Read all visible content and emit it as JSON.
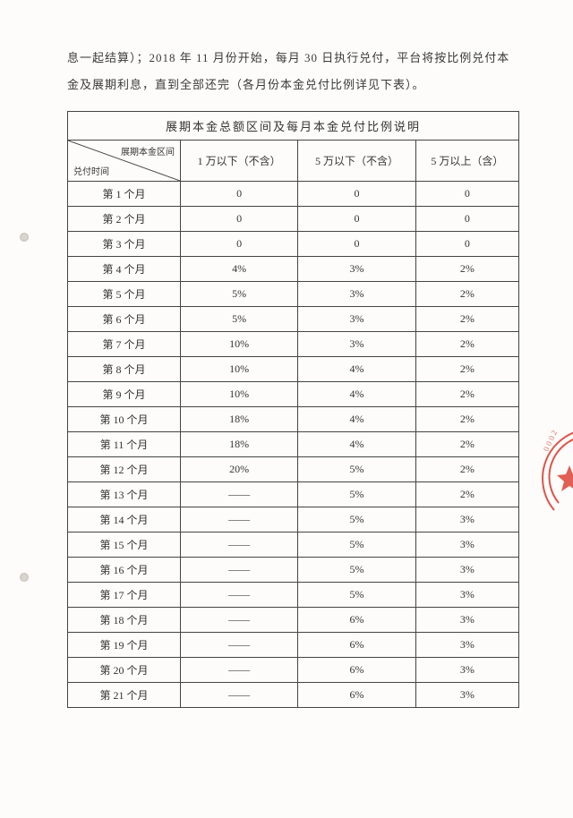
{
  "intro_text": "息一起结算）；2018 年 11 月份开始，每月 30 日执行兑付，平台将按比例兑付本金及展期利息，直到全部还完（各月份本金兑付比例详见下表）。",
  "table": {
    "title": "展期本金总额区间及每月本金兑付比例说明",
    "diag_top": "展期本金区间",
    "diag_bottom": "兑付时间",
    "columns": [
      "1 万以下（不含）",
      "5 万以下（不含）",
      "5 万以上（含）"
    ],
    "rows": [
      {
        "label": "第 1 个月",
        "c1": "0",
        "c2": "0",
        "c3": "0"
      },
      {
        "label": "第 2 个月",
        "c1": "0",
        "c2": "0",
        "c3": "0"
      },
      {
        "label": "第 3 个月",
        "c1": "0",
        "c2": "0",
        "c3": "0"
      },
      {
        "label": "第 4 个月",
        "c1": "4%",
        "c2": "3%",
        "c3": "2%"
      },
      {
        "label": "第 5 个月",
        "c1": "5%",
        "c2": "3%",
        "c3": "2%"
      },
      {
        "label": "第 6 个月",
        "c1": "5%",
        "c2": "3%",
        "c3": "2%"
      },
      {
        "label": "第 7 个月",
        "c1": "10%",
        "c2": "3%",
        "c3": "2%"
      },
      {
        "label": "第 8 个月",
        "c1": "10%",
        "c2": "4%",
        "c3": "2%"
      },
      {
        "label": "第 9 个月",
        "c1": "10%",
        "c2": "4%",
        "c3": "2%"
      },
      {
        "label": "第 10 个月",
        "c1": "18%",
        "c2": "4%",
        "c3": "2%"
      },
      {
        "label": "第 11 个月",
        "c1": "18%",
        "c2": "4%",
        "c3": "2%"
      },
      {
        "label": "第 12 个月",
        "c1": "20%",
        "c2": "5%",
        "c3": "2%"
      },
      {
        "label": "第 13 个月",
        "c1": "——",
        "c2": "5%",
        "c3": "2%"
      },
      {
        "label": "第 14 个月",
        "c1": "——",
        "c2": "5%",
        "c3": "3%"
      },
      {
        "label": "第 15 个月",
        "c1": "——",
        "c2": "5%",
        "c3": "3%"
      },
      {
        "label": "第 16 个月",
        "c1": "——",
        "c2": "5%",
        "c3": "3%"
      },
      {
        "label": "第 17 个月",
        "c1": "——",
        "c2": "5%",
        "c3": "3%"
      },
      {
        "label": "第 18 个月",
        "c1": "——",
        "c2": "6%",
        "c3": "3%"
      },
      {
        "label": "第 19 个月",
        "c1": "——",
        "c2": "6%",
        "c3": "3%"
      },
      {
        "label": "第 20 个月",
        "c1": "——",
        "c2": "6%",
        "c3": "3%"
      },
      {
        "label": "第 21 个月",
        "c1": "——",
        "c2": "6%",
        "c3": "3%"
      }
    ]
  },
  "colors": {
    "stamp": "#d9372b",
    "border": "#444444",
    "text": "#333333",
    "page_bg": "#fdfcfa"
  }
}
